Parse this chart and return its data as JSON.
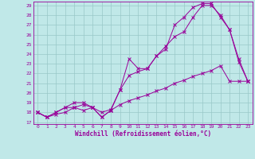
{
  "background_color": "#c0e8e8",
  "grid_color": "#99c8c8",
  "line_color": "#990099",
  "xlim_min": -0.5,
  "xlim_max": 23.5,
  "ylim_min": 16.8,
  "ylim_max": 29.4,
  "yticks": [
    17,
    18,
    19,
    20,
    21,
    22,
    23,
    24,
    25,
    26,
    27,
    28,
    29
  ],
  "xticks": [
    0,
    1,
    2,
    3,
    4,
    5,
    6,
    7,
    8,
    9,
    10,
    11,
    12,
    13,
    14,
    15,
    16,
    17,
    18,
    19,
    20,
    21,
    22,
    23
  ],
  "line1_x": [
    0,
    1,
    2,
    3,
    4,
    5,
    6,
    7,
    8,
    9,
    10,
    11,
    12,
    13,
    14,
    15,
    16,
    17,
    18,
    19,
    20,
    21,
    22,
    23
  ],
  "line1_y": [
    18.0,
    17.5,
    17.8,
    18.0,
    18.5,
    18.8,
    18.5,
    17.5,
    18.2,
    18.8,
    19.2,
    19.5,
    19.8,
    20.2,
    20.5,
    21.0,
    21.3,
    21.7,
    22.0,
    22.3,
    22.8,
    21.2,
    21.2,
    21.2
  ],
  "line2_x": [
    0,
    1,
    2,
    3,
    4,
    5,
    6,
    7,
    8,
    9,
    10,
    11,
    12,
    13,
    14,
    15,
    16,
    17,
    18,
    19,
    20,
    21,
    22,
    23
  ],
  "line2_y": [
    18.0,
    17.5,
    18.0,
    18.5,
    19.0,
    19.0,
    18.5,
    18.0,
    18.3,
    20.3,
    21.8,
    22.2,
    22.5,
    23.8,
    24.8,
    25.8,
    26.3,
    27.8,
    29.0,
    29.0,
    28.0,
    26.5,
    23.2,
    21.2
  ],
  "line3_x": [
    0,
    1,
    2,
    3,
    4,
    5,
    6,
    7,
    8,
    9,
    10,
    11,
    12,
    13,
    14,
    15,
    16,
    17,
    18,
    19,
    20,
    21,
    22,
    23
  ],
  "line3_y": [
    18.0,
    17.5,
    18.0,
    18.5,
    18.5,
    18.2,
    18.5,
    17.5,
    18.2,
    20.3,
    23.5,
    22.5,
    22.5,
    23.8,
    24.5,
    27.0,
    27.8,
    28.8,
    29.2,
    29.2,
    27.8,
    26.5,
    23.5,
    21.2
  ],
  "xlabel": "Windchill (Refroidissement éolien,°C)",
  "tick_fontsize": 4.5,
  "label_fontsize": 5.5
}
